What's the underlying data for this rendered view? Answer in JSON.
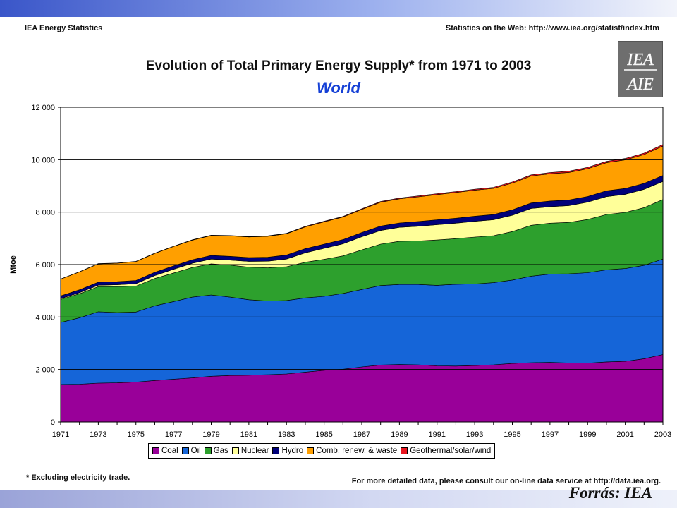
{
  "header": {
    "left": "IEA Energy Statistics",
    "right": "Statistics on the Web: http://www.iea.org/statist/index.htm"
  },
  "logo": {
    "icon": "iea-aie-logo-icon",
    "text_top": "IEA",
    "text_bottom": "AIE"
  },
  "chart_data": {
    "type": "area",
    "stacked": true,
    "title": "Evolution of Total Primary Energy Supply* from 1971 to 2003",
    "subtitle": "World",
    "xlabel": "",
    "ylabel": "Mtoe",
    "xlim": [
      1971,
      2003
    ],
    "ylim": [
      0,
      12000
    ],
    "y_ticks": [
      0,
      2000,
      4000,
      6000,
      8000,
      10000,
      12000
    ],
    "y_tick_labels": [
      "0",
      "2 000",
      "4 000",
      "6 000",
      "8 000",
      "10 000",
      "12 000"
    ],
    "x_tick_labels": [
      "1971",
      "1973",
      "1975",
      "1977",
      "1979",
      "1981",
      "1983",
      "1985",
      "1987",
      "1989",
      "1991",
      "1993",
      "1995",
      "1997",
      "1999",
      "2001",
      "2003"
    ],
    "grid": "horizontal",
    "legend_position": "bottom",
    "x": [
      1971,
      1972,
      1973,
      1974,
      1975,
      1976,
      1977,
      1978,
      1979,
      1980,
      1981,
      1982,
      1983,
      1984,
      1985,
      1986,
      1987,
      1988,
      1989,
      1990,
      1991,
      1992,
      1993,
      1994,
      1995,
      1996,
      1997,
      1998,
      1999,
      2000,
      2001,
      2002,
      2003
    ],
    "series": [
      {
        "name": "Coal",
        "color": "#990099",
        "values": [
          1430,
          1440,
          1480,
          1490,
          1520,
          1580,
          1630,
          1680,
          1740,
          1770,
          1780,
          1800,
          1830,
          1900,
          1970,
          2010,
          2100,
          2170,
          2190,
          2180,
          2140,
          2130,
          2150,
          2180,
          2230,
          2260,
          2270,
          2250,
          2240,
          2290,
          2310,
          2410,
          2570
        ]
      },
      {
        "name": "Oil",
        "color": "#1565d8",
        "values": [
          2360,
          2530,
          2720,
          2680,
          2670,
          2850,
          2960,
          3080,
          3100,
          2990,
          2880,
          2810,
          2800,
          2830,
          2820,
          2890,
          2950,
          3030,
          3050,
          3060,
          3070,
          3120,
          3110,
          3130,
          3180,
          3300,
          3370,
          3400,
          3450,
          3510,
          3540,
          3560,
          3640
        ]
      },
      {
        "name": "Gas",
        "color": "#2da02d",
        "values": [
          880,
          920,
          960,
          990,
          990,
          1040,
          1090,
          1130,
          1190,
          1220,
          1240,
          1270,
          1290,
          1360,
          1410,
          1430,
          1510,
          1580,
          1650,
          1660,
          1730,
          1740,
          1790,
          1790,
          1850,
          1940,
          1940,
          1960,
          2030,
          2110,
          2140,
          2200,
          2270
        ]
      },
      {
        "name": "Nuclear",
        "color": "#ffff99",
        "values": [
          30,
          40,
          55,
          70,
          90,
          110,
          140,
          160,
          180,
          190,
          220,
          250,
          290,
          360,
          420,
          460,
          500,
          520,
          530,
          560,
          580,
          590,
          600,
          610,
          620,
          640,
          630,
          640,
          660,
          680,
          690,
          700,
          690
        ]
      },
      {
        "name": "Hydro",
        "color": "#00007a",
        "values": [
          105,
          110,
          114,
          120,
          125,
          126,
          128,
          134,
          139,
          144,
          146,
          149,
          155,
          158,
          161,
          163,
          164,
          168,
          168,
          184,
          188,
          189,
          196,
          197,
          208,
          210,
          213,
          215,
          217,
          225,
          222,
          226,
          230
        ]
      },
      {
        "name": "Comb. renew. & waste",
        "color": "#ff9f00",
        "values": [
          640,
          680,
          700,
          700,
          720,
          720,
          740,
          750,
          760,
          780,
          790,
          800,
          810,
          830,
          850,
          860,
          880,
          910,
          920,
          940,
          960,
          980,
          990,
          1000,
          1020,
          1030,
          1040,
          1050,
          1060,
          1070,
          1090,
          1100,
          1120
        ]
      },
      {
        "name": "Geothermal/solar/wind",
        "color": "#e8141e",
        "values": [
          7,
          8,
          8,
          9,
          10,
          10,
          11,
          12,
          13,
          14,
          16,
          17,
          18,
          20,
          22,
          23,
          25,
          27,
          30,
          33,
          35,
          37,
          38,
          40,
          42,
          43,
          45,
          47,
          50,
          52,
          54,
          56,
          58
        ]
      }
    ]
  },
  "footnote": "* Excluding electricity trade.",
  "more_data": "For more detailed data, please consult our on-line data service at http://data.iea.org.",
  "source_label": "Forrás: IEA"
}
